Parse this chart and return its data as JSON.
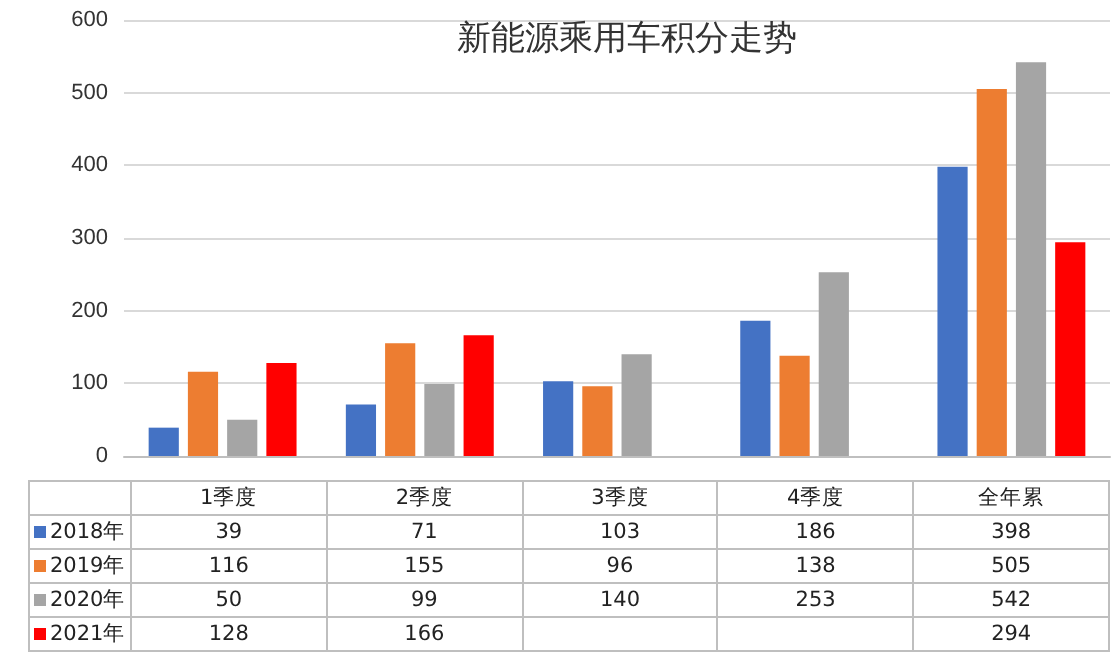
{
  "chart_data": {
    "type": "bar",
    "title": "新能源乘用车积分走势",
    "categories": [
      "1季度",
      "2季度",
      "3季度",
      "4季度",
      "全年累"
    ],
    "series": [
      {
        "name": "2018年",
        "color": "#4472c4",
        "values": [
          39,
          71,
          103,
          186,
          398
        ]
      },
      {
        "name": "2019年",
        "color": "#ed7d31",
        "values": [
          116,
          155,
          96,
          138,
          505
        ]
      },
      {
        "name": "2020年",
        "color": "#a5a5a5",
        "values": [
          50,
          99,
          140,
          253,
          542
        ]
      },
      {
        "name": "2021年",
        "color": "#ff0000",
        "values": [
          128,
          166,
          null,
          null,
          294
        ]
      }
    ],
    "ylim": [
      0,
      600
    ],
    "yticks": [
      0,
      100,
      200,
      300,
      400,
      500,
      600
    ],
    "grid": "y",
    "legend": "bottom",
    "data_labels": true
  }
}
